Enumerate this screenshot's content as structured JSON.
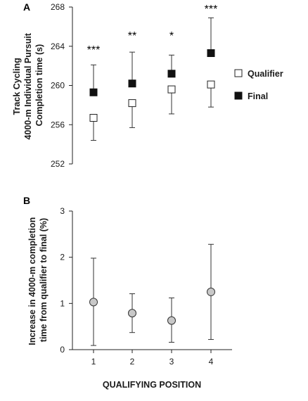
{
  "chart_data": [
    {
      "panel": "A",
      "type": "scatter",
      "ylabel_lines": [
        "Track Cycling",
        "4000-m Individual Pursuit",
        "Completion time (s)"
      ],
      "ylim": [
        252,
        268
      ],
      "yticks": [
        252,
        256,
        260,
        264,
        268
      ],
      "x": [
        1,
        2,
        3,
        4
      ],
      "series": [
        {
          "name": "Qualifier",
          "marker": "open-square",
          "values": [
            256.7,
            258.2,
            259.6,
            260.1
          ],
          "error_lower": [
            254.4,
            255.7,
            257.1,
            257.8
          ],
          "error_upper": [
            256.7,
            258.2,
            259.6,
            260.1
          ]
        },
        {
          "name": "Final",
          "marker": "filled-square",
          "values": [
            259.3,
            260.2,
            261.2,
            263.3
          ],
          "error_lower": [
            259.3,
            260.2,
            261.2,
            263.3
          ],
          "error_upper": [
            262.1,
            263.4,
            263.1,
            266.9
          ]
        }
      ],
      "annotations": [
        "***",
        "**",
        "*",
        "***"
      ],
      "legend_position": "right"
    },
    {
      "panel": "B",
      "type": "scatter",
      "ylabel_lines": [
        "Increase in 4000-m completion",
        "time from qualifier to final (%)"
      ],
      "xlabel": "QUALIFYING POSITION",
      "xticks": [
        "1",
        "2",
        "3",
        "4"
      ],
      "ylim": [
        0,
        3
      ],
      "yticks": [
        0,
        1,
        2,
        3
      ],
      "x": [
        1,
        2,
        3,
        4
      ],
      "series": [
        {
          "marker": "gray-circle",
          "values": [
            1.03,
            0.79,
            0.63,
            1.25
          ],
          "error_lower": [
            0.09,
            0.37,
            0.16,
            0.22
          ],
          "error_upper": [
            1.98,
            1.21,
            1.12,
            2.28
          ]
        }
      ]
    }
  ]
}
